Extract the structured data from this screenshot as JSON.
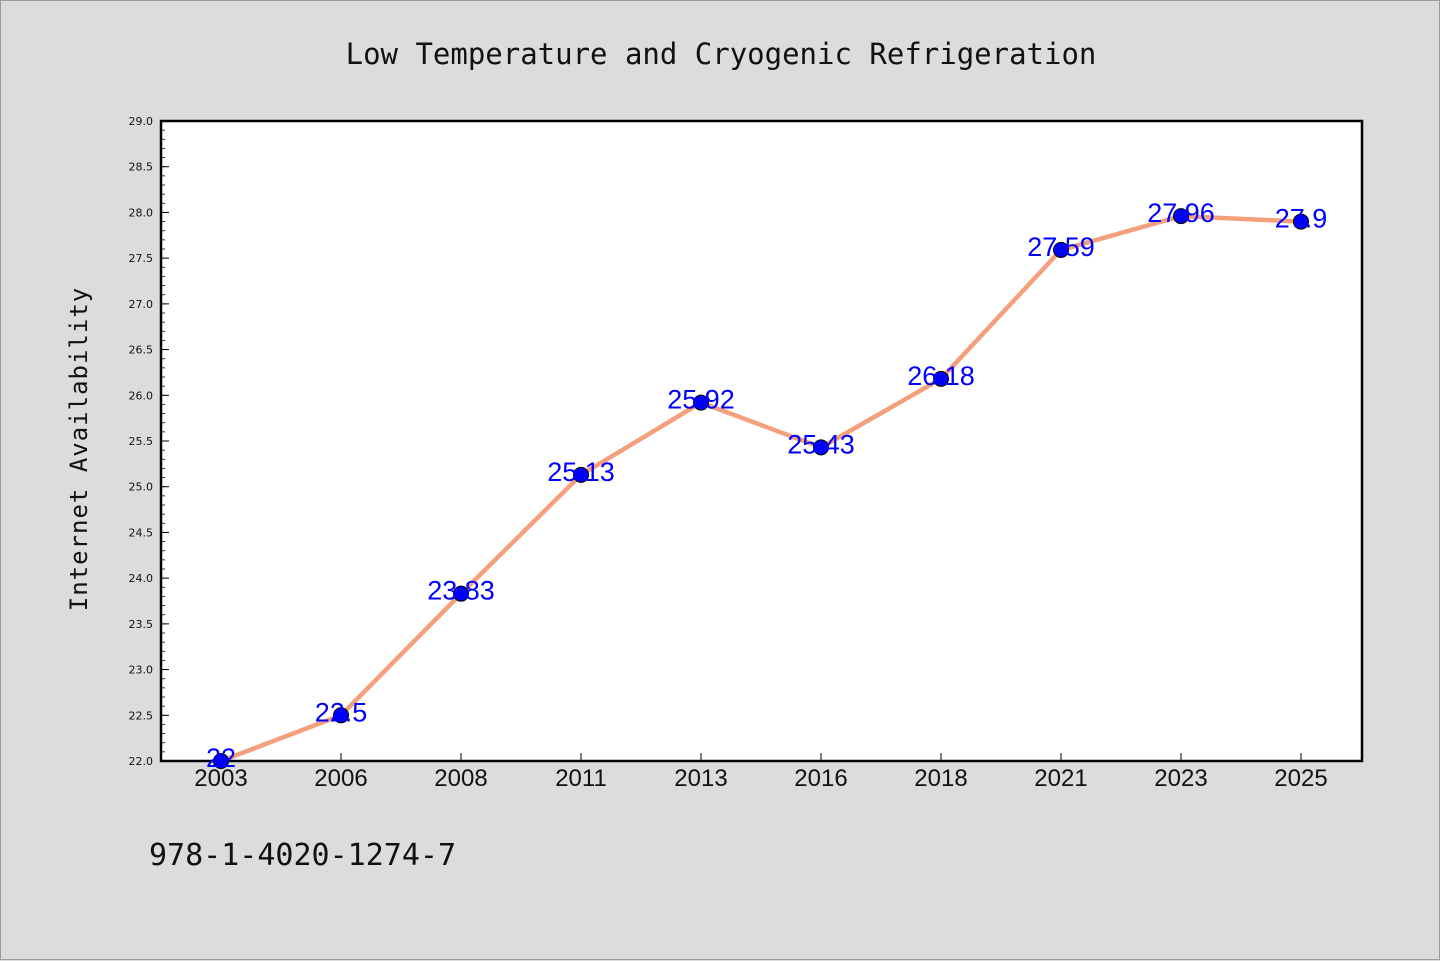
{
  "chart_data": {
    "type": "line",
    "title": "Low Temperature and Cryogenic Refrigeration",
    "xlabel": "",
    "ylabel": "Internet Availability",
    "categories": [
      "2003",
      "2006",
      "2008",
      "2011",
      "2013",
      "2016",
      "2018",
      "2021",
      "2023",
      "2025"
    ],
    "series": [
      {
        "values": [
          22,
          22.5,
          23.83,
          25.13,
          25.92,
          25.43,
          26.18,
          27.59,
          27.96,
          27.9
        ]
      }
    ],
    "data_labels": [
      "22",
      "22.5",
      "23.83",
      "25.13",
      "25.92",
      "25.43",
      "26.18",
      "27.59",
      "27.96",
      "27.9"
    ],
    "ylim": [
      22.0,
      29.0
    ],
    "yticks": [
      "22.0",
      "22.5",
      "23.0",
      "23.5",
      "24.0",
      "24.5",
      "25.0",
      "25.5",
      "26.0",
      "26.5",
      "27.0",
      "27.5",
      "28.0",
      "28.5",
      "29.0"
    ],
    "grid": false,
    "legend": "none",
    "colors": {
      "line": "#f4a07c",
      "marker": "#0000ff",
      "data_label": "#0000ff",
      "background": "#dcdcdc",
      "plot_background": "#ffffff"
    }
  },
  "footnote": "978-1-4020-1274-7"
}
